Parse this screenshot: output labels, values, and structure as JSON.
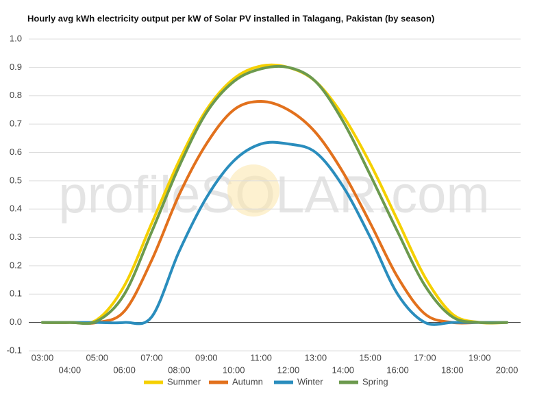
{
  "chart_data": {
    "type": "line",
    "title": "Hourly avg kWh electricity output per kW of Solar PV installed in Talagang, Pakistan (by season)",
    "watermark": "profileSOLAR.com",
    "categories": [
      "03:00",
      "04:00",
      "05:00",
      "06:00",
      "07:00",
      "08:00",
      "09:00",
      "10:00",
      "11:00",
      "12:00",
      "13:00",
      "14:00",
      "15:00",
      "16:00",
      "17:00",
      "18:00",
      "19:00",
      "20:00"
    ],
    "series": [
      {
        "name": "Summer",
        "color": "#f5d000",
        "values": [
          0,
          0,
          0.01,
          0.13,
          0.35,
          0.57,
          0.75,
          0.86,
          0.905,
          0.9,
          0.85,
          0.73,
          0.56,
          0.36,
          0.16,
          0.03,
          0,
          0
        ]
      },
      {
        "name": "Autumn",
        "color": "#e2711d",
        "values": [
          0,
          0,
          0,
          0.04,
          0.22,
          0.45,
          0.63,
          0.75,
          0.78,
          0.75,
          0.67,
          0.53,
          0.35,
          0.16,
          0.03,
          0,
          0,
          0
        ]
      },
      {
        "name": "Winter",
        "color": "#2a8dbd",
        "values": [
          0,
          0,
          0,
          0,
          0.02,
          0.25,
          0.44,
          0.57,
          0.63,
          0.63,
          0.6,
          0.48,
          0.3,
          0.1,
          0,
          0,
          0,
          0
        ]
      },
      {
        "name": "Spring",
        "color": "#6c9a4e",
        "values": [
          0,
          0,
          0.005,
          0.1,
          0.32,
          0.55,
          0.74,
          0.85,
          0.895,
          0.9,
          0.85,
          0.71,
          0.52,
          0.32,
          0.13,
          0.02,
          0,
          0
        ]
      }
    ],
    "ylim": [
      -0.1,
      1.0
    ],
    "yticks": [
      {
        "value": -0.1,
        "label": "-0.1"
      },
      {
        "value": 0,
        "label": "0.0"
      },
      {
        "value": 0.1,
        "label": "0.1"
      },
      {
        "value": 0.2,
        "label": "0.2"
      },
      {
        "value": 0.3,
        "label": "0.3"
      },
      {
        "value": 0.4,
        "label": "0.4"
      },
      {
        "value": 0.5,
        "label": "0.5"
      },
      {
        "value": 0.6,
        "label": "0.6"
      },
      {
        "value": 0.7,
        "label": "0.7"
      },
      {
        "value": 0.8,
        "label": "0.8"
      },
      {
        "value": 0.9,
        "label": "0.9"
      },
      {
        "value": 1.0,
        "label": "1.0"
      }
    ],
    "grid": true,
    "legend": "bottom"
  }
}
